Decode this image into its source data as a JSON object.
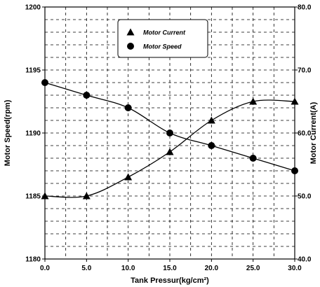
{
  "chart_data": {
    "type": "line",
    "xlabel": "Tank Pressur(kg/cm²)",
    "ylabel": "Motor Speed(rpm)",
    "y2label": "Motor Current(A)",
    "x": [
      0.0,
      5.0,
      10.0,
      15.0,
      20.0,
      25.0,
      30.0
    ],
    "x_tick_labels": [
      "0.0",
      "5.0",
      "10.0",
      "15.0",
      "20.0",
      "25.0",
      "30.0"
    ],
    "xlim": [
      0,
      30
    ],
    "ylim": [
      1180,
      1200
    ],
    "y_ticks": [
      1180,
      1185,
      1190,
      1195,
      1200
    ],
    "y_tick_labels": [
      "1180",
      "1185",
      "1190",
      "1195",
      "1200"
    ],
    "y2lim": [
      40,
      80
    ],
    "y2_ticks": [
      40,
      50,
      60,
      70,
      80
    ],
    "y2_tick_labels": [
      "40.0",
      "50.0",
      "60.0",
      "70.0",
      "80.0"
    ],
    "grid": true,
    "legend_position": "top-center",
    "series": [
      {
        "name": "Motor Current",
        "axis": "right",
        "marker": "triangle",
        "values": [
          50.0,
          50.0,
          53.0,
          57.0,
          62.0,
          65.0,
          65.0
        ]
      },
      {
        "name": "Motor Speed",
        "axis": "left",
        "marker": "circle",
        "values": [
          1194,
          1193,
          1192,
          1190,
          1189,
          1188,
          1187
        ]
      }
    ],
    "colors": {
      "line": "#000000",
      "grid": "#000000",
      "background": "#ffffff"
    }
  }
}
